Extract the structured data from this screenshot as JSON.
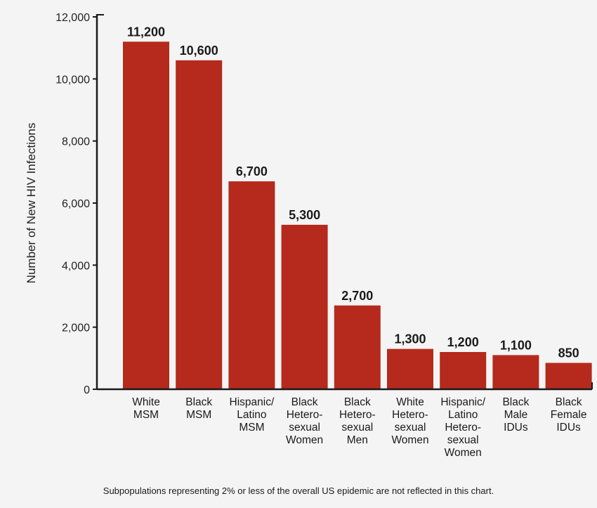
{
  "chart_data": {
    "type": "bar",
    "ylabel": "Number of New HIV Infections",
    "ylim": [
      0,
      12000
    ],
    "y_ticks": [
      0,
      2000,
      4000,
      6000,
      8000,
      10000,
      12000
    ],
    "y_tick_labels": [
      "0",
      "2,000",
      "4,000",
      "6,000",
      "8,000",
      "10,000",
      "12,000"
    ],
    "categories": [
      [
        "White",
        "MSM"
      ],
      [
        "Black",
        "MSM"
      ],
      [
        "Hispanic/",
        "Latino",
        "MSM"
      ],
      [
        "Black",
        "Hetero-",
        "sexual",
        "Women"
      ],
      [
        "Black",
        "Hetero-",
        "sexual",
        "Men"
      ],
      [
        "White",
        "Hetero-",
        "sexual",
        "Women"
      ],
      [
        "Hispanic/",
        "Latino",
        "Hetero-",
        "sexual",
        "Women"
      ],
      [
        "Black",
        "Male",
        "IDUs"
      ],
      [
        "Black",
        "Female",
        "IDUs"
      ]
    ],
    "values": [
      11200,
      10600,
      6700,
      5300,
      2700,
      1300,
      1200,
      1100,
      850
    ],
    "data_labels": [
      "11,200",
      "10,600",
      "6,700",
      "5,300",
      "2,700",
      "1,300",
      "1,200",
      "1,100",
      "850"
    ],
    "bar_color": "#b52a1d",
    "grid": false,
    "footnote": "Subpopulations representing 2% or less of the overall US epidemic are not reflected in this chart."
  }
}
